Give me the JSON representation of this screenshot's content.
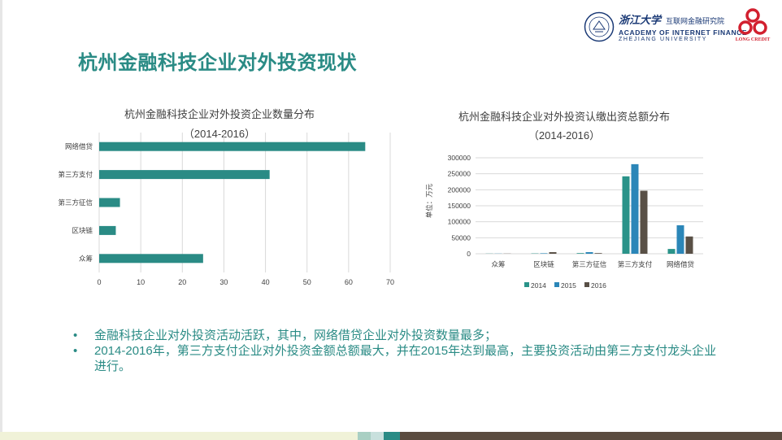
{
  "title": "杭州金融科技企业对外投资现状",
  "header": {
    "zju_name": "浙江大学",
    "institute_cn": "互联网金融研究院",
    "institute_en_1": "ACADEMY OF INTERNET FINANCE",
    "institute_en_2": "ZHEJIANG UNIVERSITY",
    "partner_logo_text": "LONG CREDIT"
  },
  "colors": {
    "teal": "#2a8b85",
    "series_2014": "#2a9389",
    "series_2015": "#2b86b8",
    "series_2016": "#595046"
  },
  "chart_data": [
    {
      "type": "bar",
      "orientation": "horizontal",
      "title": "杭州金融科技企业对外投资企业数量分布",
      "subtitle": "（2014-2016）",
      "categories": [
        "网络借贷",
        "第三方支付",
        "第三方征信",
        "区块链",
        "众筹"
      ],
      "values": [
        64,
        41,
        5,
        4,
        25
      ],
      "xlim": [
        0,
        70
      ],
      "xticks": [
        "0",
        "10",
        "20",
        "30",
        "40",
        "50",
        "60",
        "70"
      ],
      "grid": true
    },
    {
      "type": "bar",
      "title": "杭州金融科技企业对外投资认缴出资总额分布",
      "subtitle": "（2014-2016）",
      "ylabel": "单位：万元",
      "categories": [
        "众筹",
        "区块链",
        "第三方征信",
        "第三方支付",
        "网络借贷"
      ],
      "series": [
        {
          "name": "2014",
          "values": [
            500,
            1000,
            2000,
            242000,
            15000
          ]
        },
        {
          "name": "2015",
          "values": [
            500,
            1500,
            5000,
            280000,
            89000
          ]
        },
        {
          "name": "2016",
          "values": [
            500,
            5000,
            2000,
            197000,
            54000
          ]
        }
      ],
      "ylim": [
        0,
        300000
      ],
      "yticks": [
        "0",
        "50000",
        "100000",
        "150000",
        "200000",
        "250000",
        "300000"
      ],
      "grid": true,
      "legend": "bottom"
    }
  ],
  "bullets": [
    "金融科技企业对外投资活动活跃，其中，网络借贷企业对外投资数量最多；",
    "2014-2016年，第三方支付企业对外投资金额总额最大，并在2015年达到最高，主要投资活动由第三方支付龙头企业进行。"
  ]
}
